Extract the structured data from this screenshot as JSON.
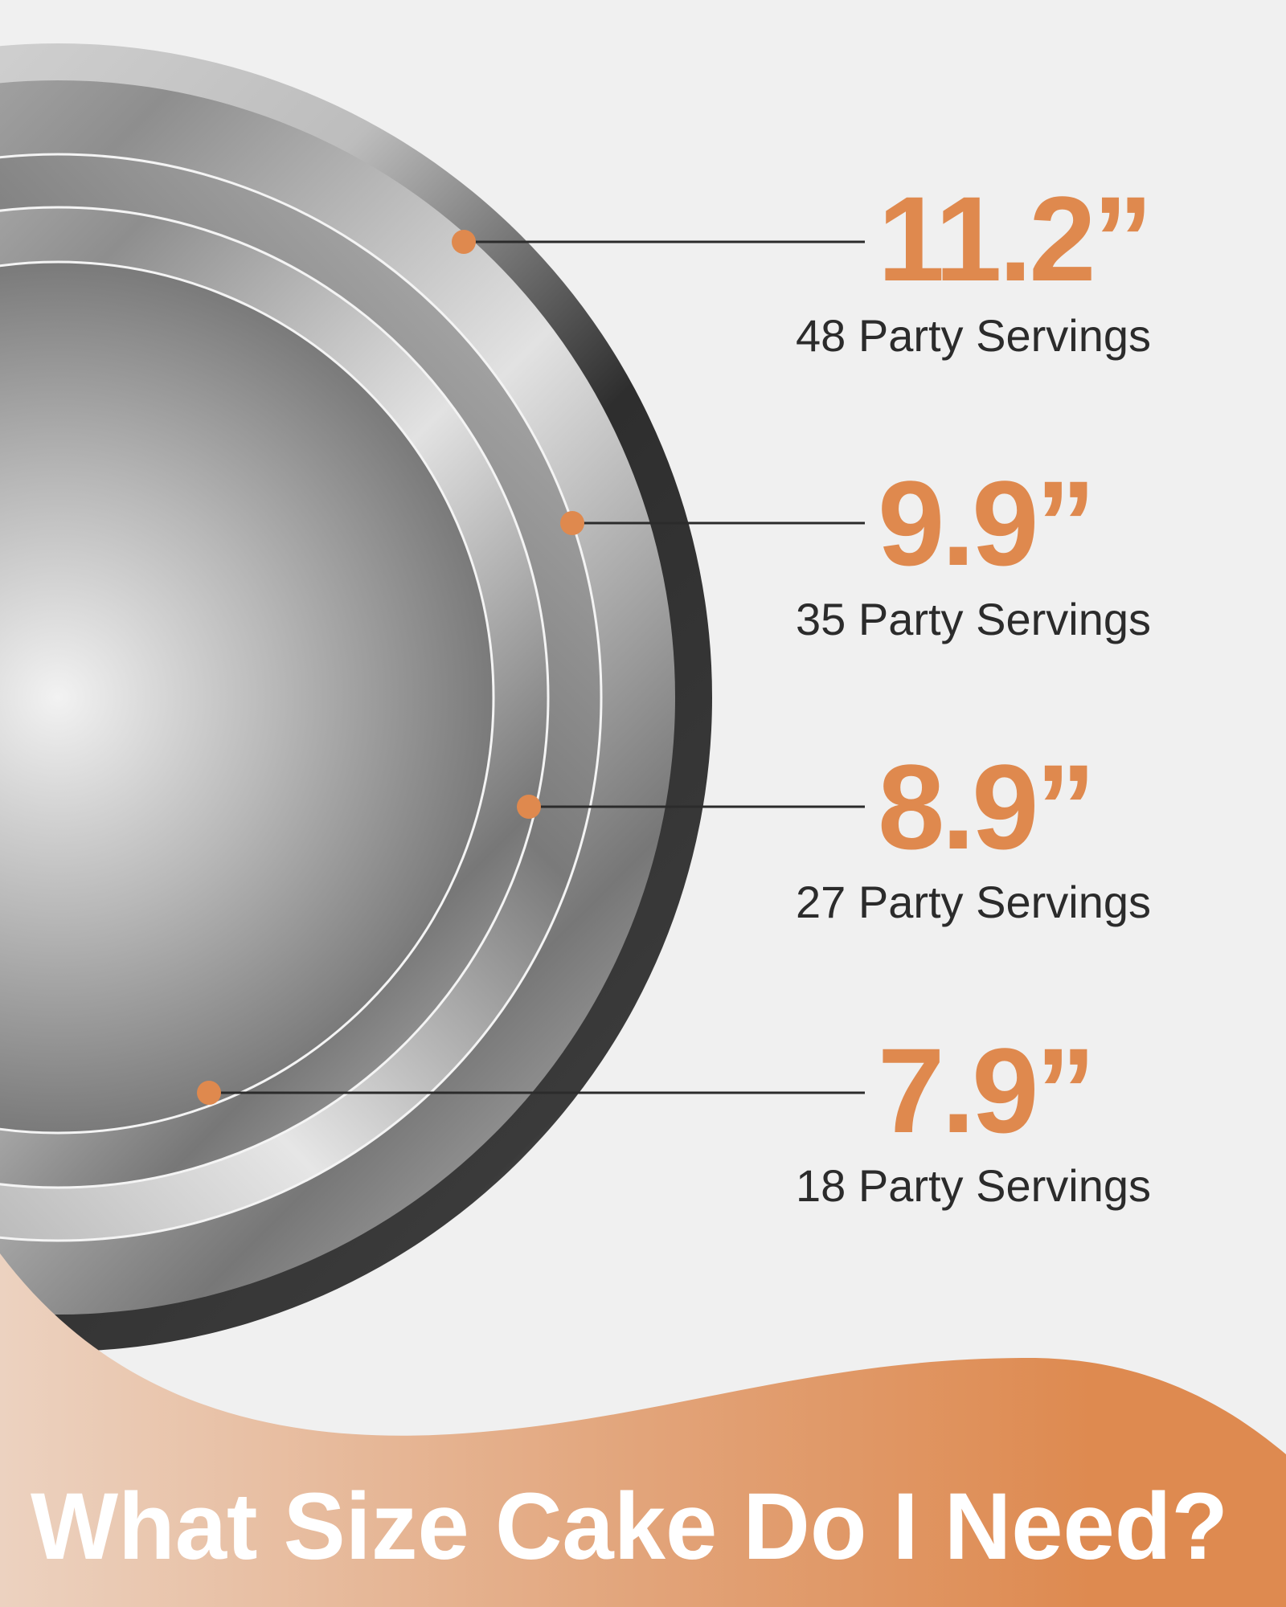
{
  "title": "What Size Cake Do I Need?",
  "accent_color": "#df894e",
  "sizes": [
    {
      "size": "11.2”",
      "servings": "48 Party Servings"
    },
    {
      "size": "9.9”",
      "servings": "35 Party Servings"
    },
    {
      "size": "8.9”",
      "servings": "27 Party Servings"
    },
    {
      "size": "7.9”",
      "servings": "18 Party Servings"
    }
  ]
}
